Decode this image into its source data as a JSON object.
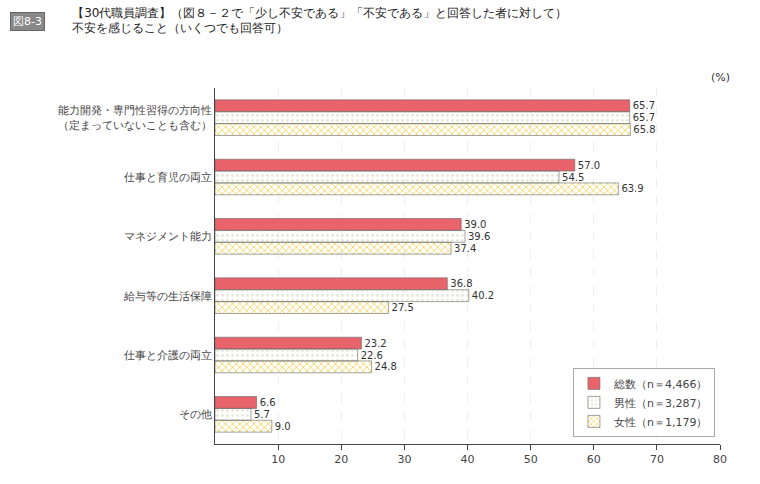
{
  "chart_data": {
    "type": "bar",
    "orientation": "horizontal",
    "title": "【30代職員調査】（図８－２で「少し不安である」「不安である」と回答した者に対して）",
    "subtitle": "不安を感じること（いくつでも回答可）",
    "annotations": [
      "図8-3",
      "(%)"
    ],
    "categories": [
      "能力開発・専門性習得の方向性\n（定まっていないことも含む）",
      "仕事と育児の両立",
      "マネジメント能力",
      "給与等の生活保障",
      "仕事と介護の両立",
      "その他"
    ],
    "series": [
      {
        "name": "総数（n＝4,466）",
        "color": "#E8636A",
        "values": [
          65.7,
          57.0,
          39.0,
          36.8,
          23.2,
          6.6
        ],
        "value_labels": [
          "65.7",
          "57.0",
          "39.0",
          "36.8",
          "23.2",
          "6.6"
        ]
      },
      {
        "name": "男性（n＝3,287）",
        "color": "#E8E8D8",
        "values": [
          65.7,
          54.5,
          39.6,
          40.2,
          22.6,
          5.7
        ],
        "value_labels": [
          "65.7",
          "54.5",
          "39.6",
          "40.2",
          "22.6",
          "5.7"
        ]
      },
      {
        "name": "女性（n＝1,179）",
        "color": "#F0C830",
        "values": [
          65.8,
          63.9,
          37.4,
          27.5,
          24.8,
          9.0
        ],
        "value_labels": [
          "65.8",
          "63.9",
          "37.4",
          "27.5",
          "24.8",
          "9.0"
        ]
      }
    ],
    "xlim": [
      0,
      80
    ],
    "xticks": [
      10,
      20,
      30,
      40,
      50,
      60,
      70,
      80
    ],
    "grid": true,
    "legend": "lower right",
    "data_labels": true
  }
}
